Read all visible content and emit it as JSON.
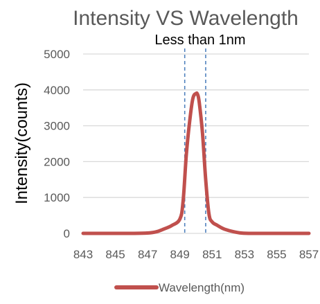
{
  "chart_data": {
    "type": "line",
    "title": "Intensity VS Wavelength",
    "annotation": "Less than 1nm",
    "xlabel": "",
    "ylabel": "Intensity(counts)",
    "xlim": [
      843,
      857
    ],
    "ylim": [
      0,
      5000
    ],
    "x_ticks": [
      "843",
      "845",
      "847",
      "849",
      "851",
      "853",
      "855",
      "857"
    ],
    "y_ticks": [
      "0",
      "1000",
      "2000",
      "3000",
      "4000",
      "5000"
    ],
    "grid": true,
    "legend_position": "bottom",
    "marker_lines": [
      849.3,
      850.6
    ],
    "series": [
      {
        "name": "Wavelength(nm)",
        "color": "#c0504d",
        "x": [
          843,
          846,
          847,
          847.5,
          848,
          848.5,
          849,
          849.2,
          849.4,
          849.6,
          849.8,
          850,
          850.1,
          850.2,
          850.4,
          850.6,
          850.8,
          851,
          851.3,
          851.7,
          852.2,
          852.7,
          853.3,
          854,
          855,
          857
        ],
        "y": [
          0,
          0,
          10,
          40,
          120,
          220,
          400,
          900,
          2200,
          3100,
          3750,
          3900,
          3870,
          3650,
          2800,
          1500,
          550,
          320,
          230,
          130,
          60,
          15,
          0,
          0,
          0,
          0
        ]
      }
    ]
  }
}
